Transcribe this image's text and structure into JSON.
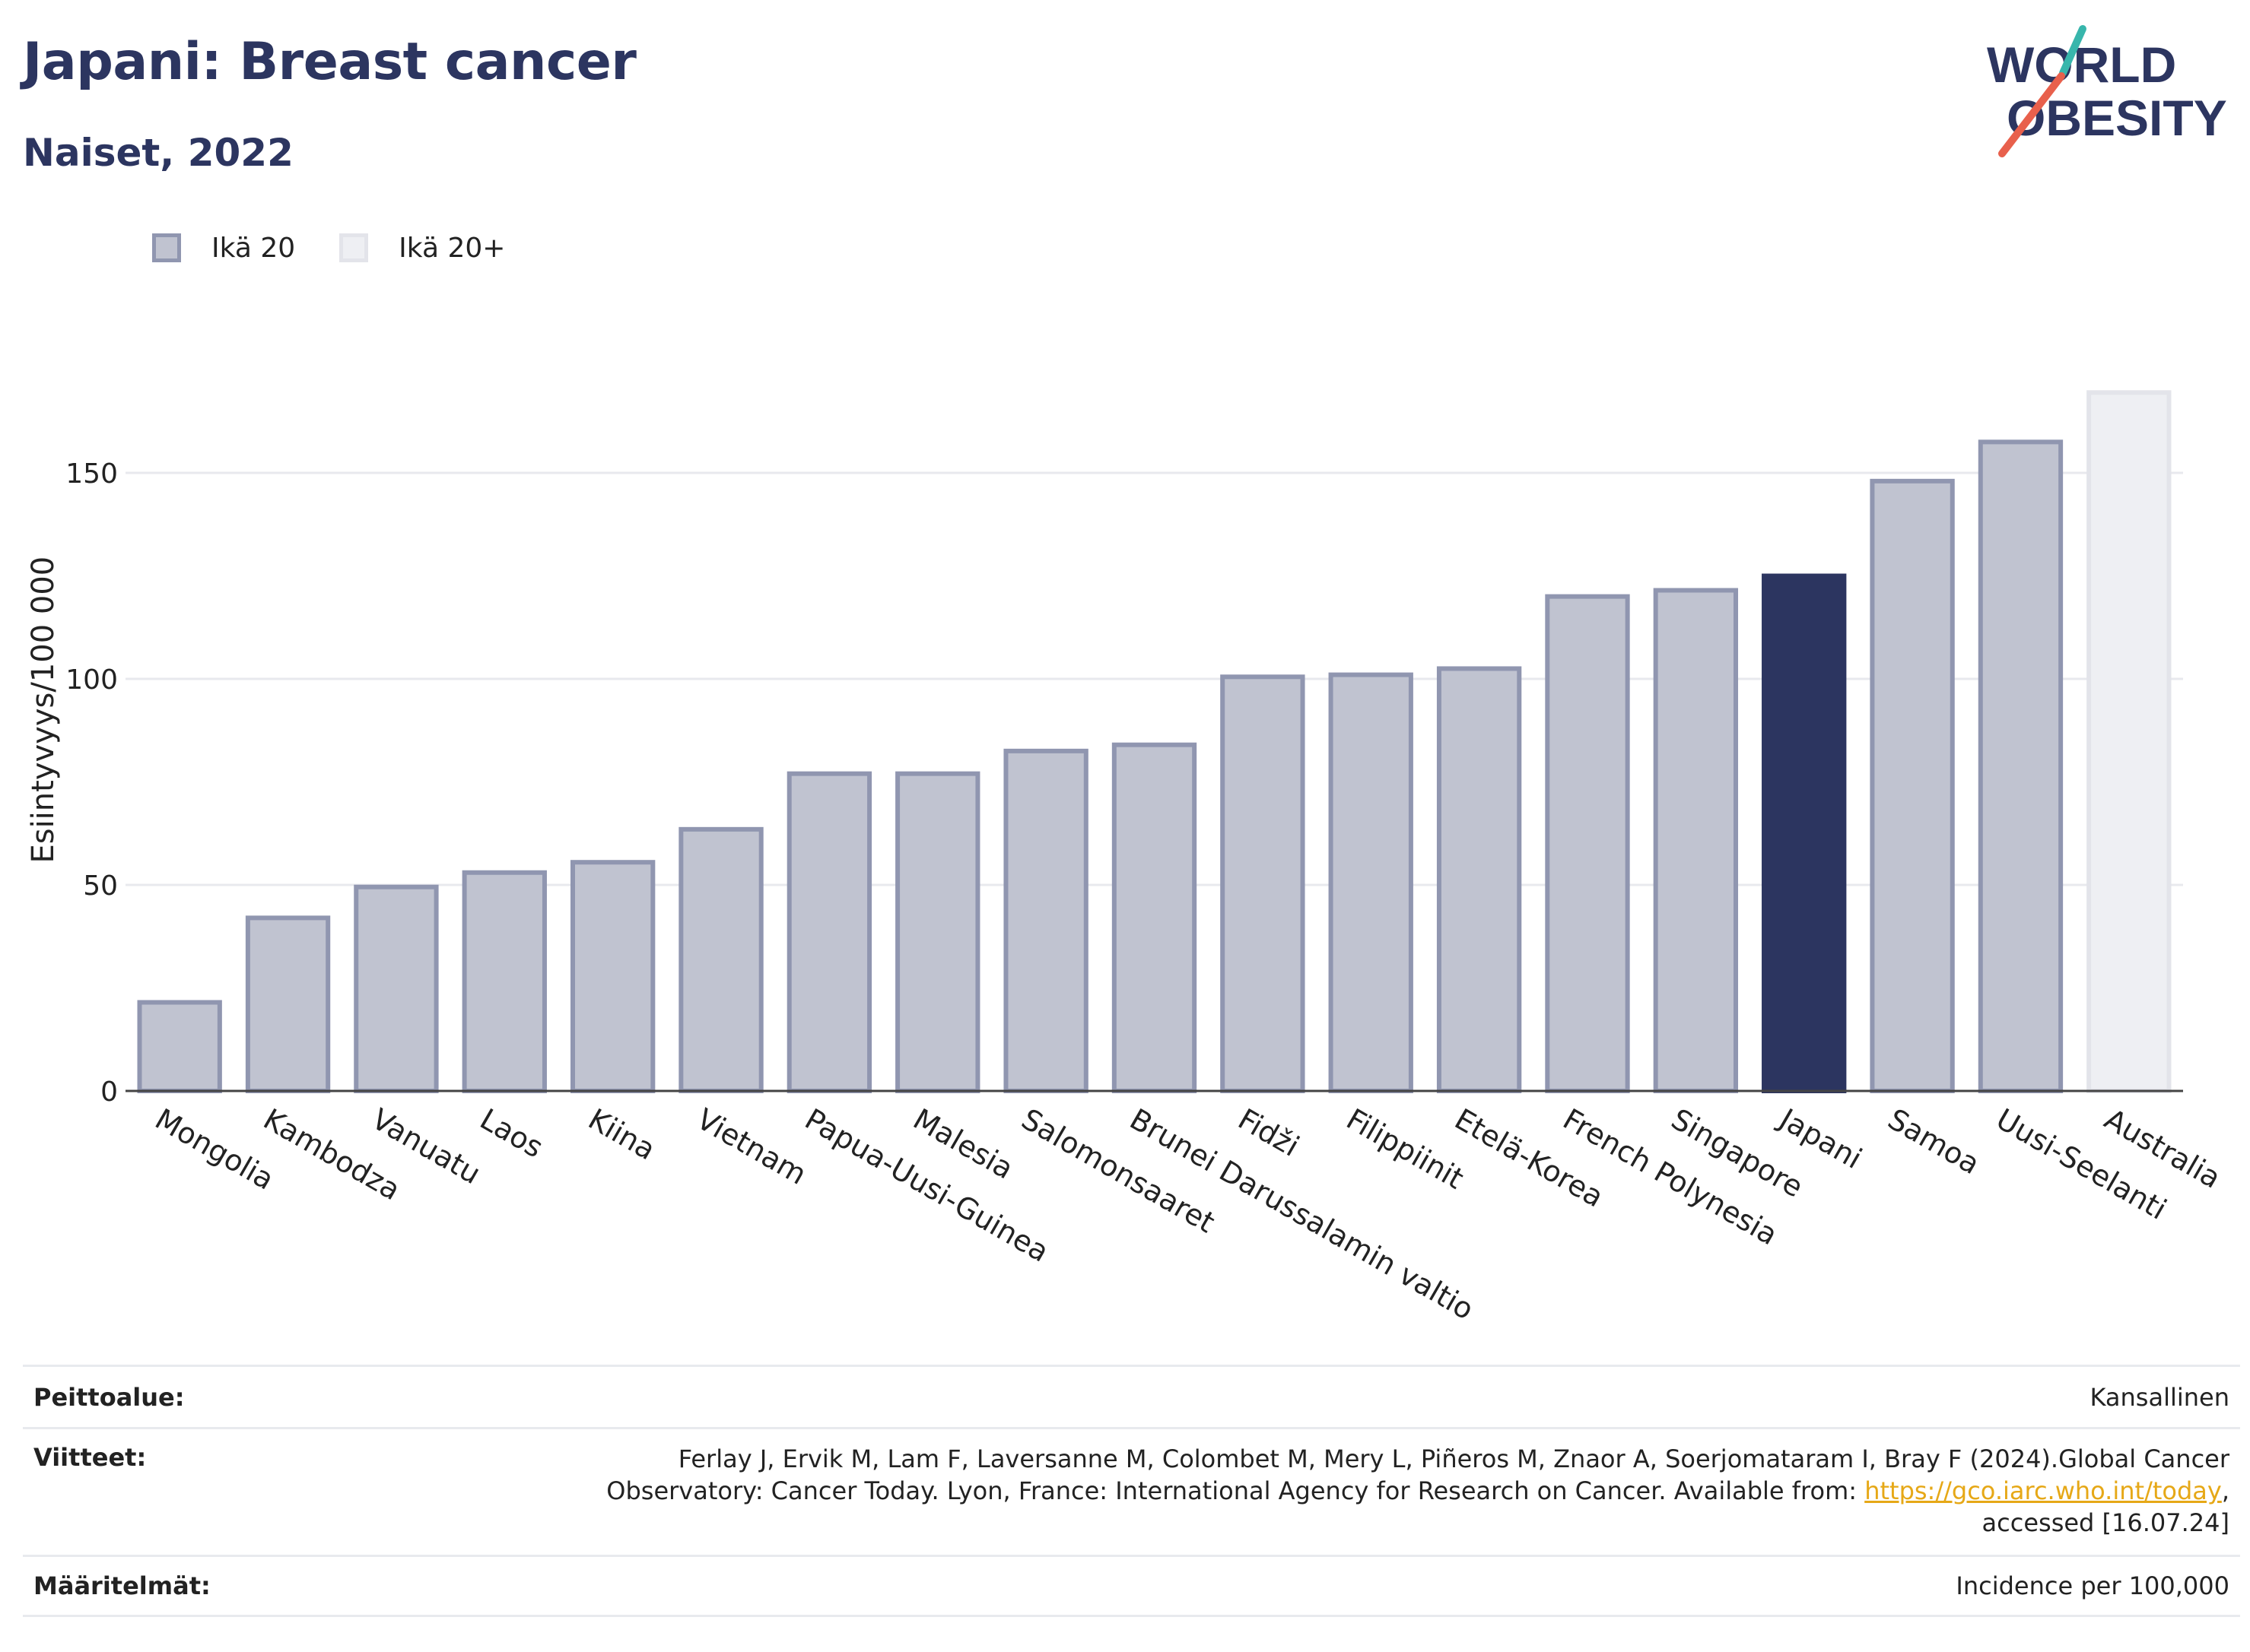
{
  "header": {
    "title": "Japani: Breast cancer",
    "subtitle": "Naiset, 2022"
  },
  "logo": {
    "line1": "WORLD",
    "line2": "OBESITY",
    "slash_colors": [
      "#38b6ac",
      "#e8604c"
    ],
    "text_color": "#2c3560"
  },
  "legend": {
    "items": [
      {
        "label": "Ikä 20",
        "color": "#c0c3d0"
      },
      {
        "label": "Ikä 20+",
        "color": "#eeeff3"
      }
    ]
  },
  "chart_data": {
    "type": "bar",
    "ylabel": "Esiintyvyys/100 000",
    "xlabel": "",
    "ylim": [
      0,
      175
    ],
    "yticks": [
      0,
      50,
      100,
      150
    ],
    "grid": true,
    "highlight_color": "#2c3560",
    "categories": [
      "Mongolia",
      "Kambodza",
      "Vanuatu",
      "Laos",
      "Kiina",
      "Vietnam",
      "Papua-Uusi-Guinea",
      "Malesia",
      "Salomonsaaret",
      "Brunei Darussalamin valtio",
      "Fidži",
      "Filippiinit",
      "Etelä-Korea",
      "French Polynesia",
      "Singapore",
      "Japani",
      "Samoa",
      "Uusi-Seelanti",
      "Australia"
    ],
    "values": [
      21.5,
      42,
      49.5,
      53,
      55.5,
      63.5,
      77,
      77,
      82.5,
      84,
      100.5,
      101,
      102.5,
      120,
      121.5,
      125,
      148,
      157.5,
      169.5
    ],
    "group": [
      "Ikä 20",
      "Ikä 20",
      "Ikä 20",
      "Ikä 20",
      "Ikä 20",
      "Ikä 20",
      "Ikä 20",
      "Ikä 20",
      "Ikä 20",
      "Ikä 20",
      "Ikä 20",
      "Ikä 20",
      "Ikä 20",
      "Ikä 20",
      "Ikä 20",
      "Ikä 20",
      "Ikä 20",
      "Ikä 20",
      "Ikä 20+"
    ],
    "highlight": "Japani"
  },
  "meta": {
    "coverage": {
      "label": "Peittoalue:",
      "value": "Kansallinen"
    },
    "references": {
      "label": "Viitteet:",
      "line1": "Ferlay J, Ervik M, Lam F, Laversanne M, Colombet M, Mery L, Piñeros M, Znaor A, Soerjomataram I, Bray F (2024).Global Cancer",
      "line2_prefix": "Observatory: Cancer Today. Lyon, France: International Agency for Research on Cancer. Available from: ",
      "link": "https://gco.iarc.who.int/today",
      "line2_suffix": ",",
      "line3": "accessed [16.07.24]"
    },
    "definitions": {
      "label": "Määritelmät:",
      "value": "Incidence per 100,000"
    }
  }
}
